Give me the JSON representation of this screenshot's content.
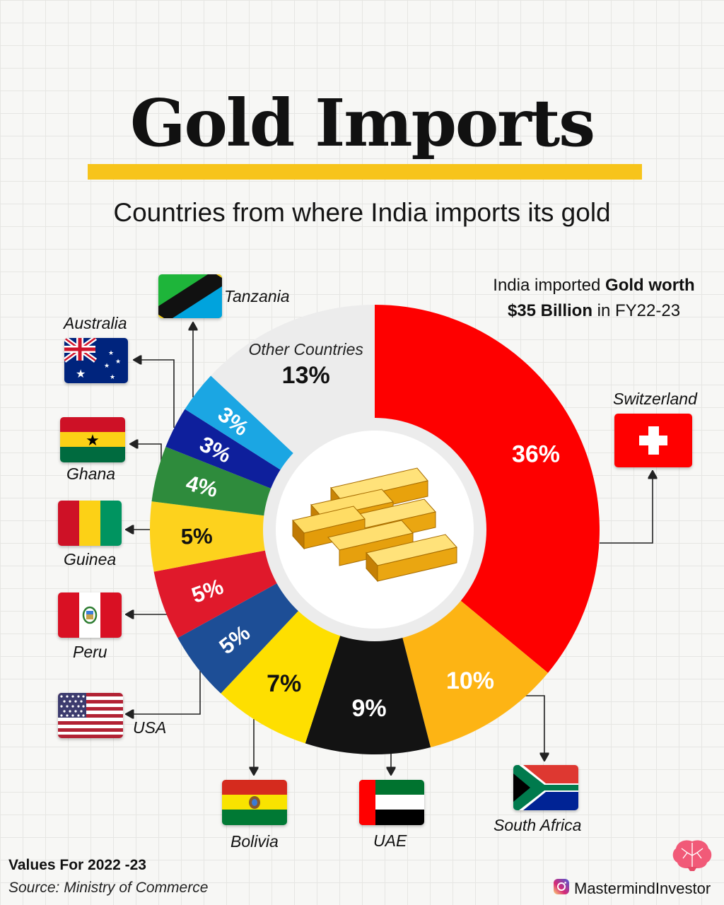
{
  "header": {
    "title": "Gold Imports",
    "subtitle": "Countries from where India imports its gold"
  },
  "note": {
    "line1_plain": "India imported ",
    "line1_bold": "Gold worth",
    "line2_bold": "$35 Billion",
    "line2_plain": " in FY22-23"
  },
  "chart_data": {
    "type": "pie",
    "style": "donut",
    "start": "top, clockwise",
    "slices": [
      {
        "label": "Switzerland",
        "value": 36,
        "display": "36%",
        "color": "#fe0000",
        "text_color": "#ffffff"
      },
      {
        "label": "South Africa",
        "value": 10,
        "display": "10%",
        "color": "#fdb414",
        "text_color": "#ffffff"
      },
      {
        "label": "UAE",
        "value": 9,
        "display": "9%",
        "color": "#131313",
        "text_color": "#ffffff"
      },
      {
        "label": "Bolivia",
        "value": 7,
        "display": "7%",
        "color": "#fedf00",
        "text_color": "#111111"
      },
      {
        "label": "USA",
        "value": 5,
        "display": "5%",
        "color": "#1d4e96",
        "text_color": "#ffffff"
      },
      {
        "label": "Peru",
        "value": 5,
        "display": "5%",
        "color": "#e0192b",
        "text_color": "#ffffff"
      },
      {
        "label": "Guinea",
        "value": 5,
        "display": "5%",
        "color": "#fdd21d",
        "text_color": "#111111"
      },
      {
        "label": "Ghana",
        "value": 4,
        "display": "4%",
        "color": "#2e8b3c",
        "text_color": "#ffffff"
      },
      {
        "label": "Australia",
        "value": 3,
        "display": "3%",
        "color": "#0e1f9c",
        "text_color": "#ffffff"
      },
      {
        "label": "Tanzania",
        "value": 3,
        "display": "3%",
        "color": "#1ba6e3",
        "text_color": "#ffffff"
      },
      {
        "label": "Other Countries",
        "value": 13,
        "display": "13%",
        "color": "#ececec",
        "text_color": "#111111"
      }
    ]
  },
  "countries": {
    "tanzania": "Tanzania",
    "australia": "Australia",
    "ghana": "Ghana",
    "guinea": "Guinea",
    "peru": "Peru",
    "usa": "USA",
    "bolivia": "Bolivia",
    "uae": "UAE",
    "south_africa": "South Africa",
    "switzerland": "Switzerland"
  },
  "footer": {
    "values": "Values For 2022 -23",
    "source": "Source: Ministry of Commerce",
    "brand": "MastermindInvestor"
  },
  "icons": {
    "center": "gold-bars-icon",
    "brand": "instagram-icon",
    "logo": "brain-logo-icon"
  }
}
